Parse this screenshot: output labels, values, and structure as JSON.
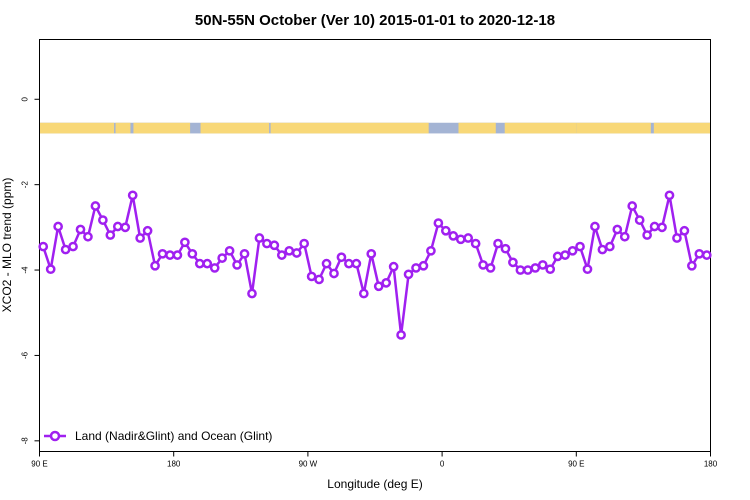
{
  "chart_data": {
    "type": "line",
    "title": "50N-55N October (Ver 10)   2015-01-01 to 2020-12-18",
    "xlabel": "Longitude (deg E)",
    "ylabel": "XCO2 - MLO trend (ppm)",
    "xlim": [
      90,
      540
    ],
    "ylim": [
      -8.25,
      1.4
    ],
    "x_ticks": [
      {
        "value": 90,
        "label": "90 E"
      },
      {
        "value": 180,
        "label": "180"
      },
      {
        "value": 270,
        "label": "90 W"
      },
      {
        "value": 360,
        "label": "0"
      },
      {
        "value": 450,
        "label": "90 E"
      },
      {
        "value": 540,
        "label": "180"
      }
    ],
    "y_ticks": [
      0,
      -2,
      -4,
      -6,
      -8
    ],
    "legend": {
      "position": "bottom-left",
      "entries": [
        "Land (Nadir&Glint) and Ocean (Glint)"
      ]
    },
    "series_color": "#a020f0",
    "land_ocean_band": {
      "y_range": [
        -0.55,
        -0.8
      ],
      "ocean_color": "#a4b4d4",
      "land_color": "#f8d878",
      "land_segments": [
        [
          90,
          140
        ],
        [
          141,
          151
        ],
        [
          153,
          191
        ],
        [
          198,
          244
        ],
        [
          245,
          351
        ],
        [
          371,
          396
        ],
        [
          402,
          450
        ],
        [
          450,
          500
        ],
        [
          502,
          540
        ]
      ]
    },
    "series": [
      {
        "name": "Land (Nadir&Glint) and Ocean (Glint)",
        "x": [
          92.5,
          97.5,
          102.5,
          107.5,
          112.5,
          117.5,
          122.5,
          127.5,
          132.5,
          137.5,
          142.5,
          147.5,
          152.5,
          157.5,
          162.5,
          167.5,
          172.5,
          177.5,
          182.5,
          187.5,
          192.5,
          197.5,
          202.5,
          207.5,
          212.5,
          217.5,
          222.5,
          227.5,
          232.5,
          237.5,
          242.5,
          247.5,
          252.5,
          257.5,
          262.5,
          267.5,
          272.5,
          277.5,
          282.5,
          287.5,
          292.5,
          297.5,
          302.5,
          307.5,
          312.5,
          317.5,
          322.5,
          327.5,
          332.5,
          337.5,
          342.5,
          347.5,
          352.5,
          357.5,
          362.5,
          367.5,
          372.5,
          377.5,
          382.5,
          387.5,
          392.5,
          397.5,
          402.5,
          407.5,
          412.5,
          417.5,
          422.5,
          427.5,
          432.5,
          437.5,
          442.5,
          447.5,
          452.5,
          457.5,
          462.5,
          467.5,
          472.5,
          477.5,
          482.5,
          487.5,
          492.5,
          497.5,
          502.5,
          507.5,
          512.5,
          517.5,
          522.5,
          527.5,
          532.5,
          537.5
        ],
        "y": [
          -3.45,
          -3.98,
          -2.98,
          -3.52,
          -3.45,
          -3.05,
          -3.22,
          -2.5,
          -2.83,
          -3.18,
          -2.98,
          -3.0,
          -2.25,
          -3.25,
          -3.08,
          -3.9,
          -3.62,
          -3.65,
          -3.65,
          -3.35,
          -3.62,
          -3.85,
          -3.85,
          -3.95,
          -3.72,
          -3.55,
          -3.88,
          -3.62,
          -4.55,
          -3.25,
          -3.38,
          -3.42,
          -3.65,
          -3.55,
          -3.6,
          -3.38,
          -4.15,
          -4.22,
          -3.85,
          -4.08,
          -3.7,
          -3.85,
          -3.85,
          -4.55,
          -3.62,
          -4.38,
          -4.3,
          -3.92,
          -5.52,
          -4.1,
          -3.95,
          -3.9,
          -3.55,
          -2.9,
          -3.08,
          -3.2,
          -3.28,
          -3.25,
          -3.38,
          -3.88,
          -3.95,
          -3.38,
          -3.5,
          -3.82,
          -4.0,
          -4.0,
          -3.95,
          -3.88,
          -3.98,
          -3.68,
          -3.65,
          -3.55,
          -3.45,
          -3.98,
          -2.98,
          -3.52,
          -3.45,
          -3.05,
          -3.22,
          -2.5,
          -2.83,
          -3.18,
          -2.98,
          -3.0,
          -2.25,
          -3.25,
          -3.08,
          -3.9,
          -3.62,
          -3.65
        ]
      }
    ]
  }
}
